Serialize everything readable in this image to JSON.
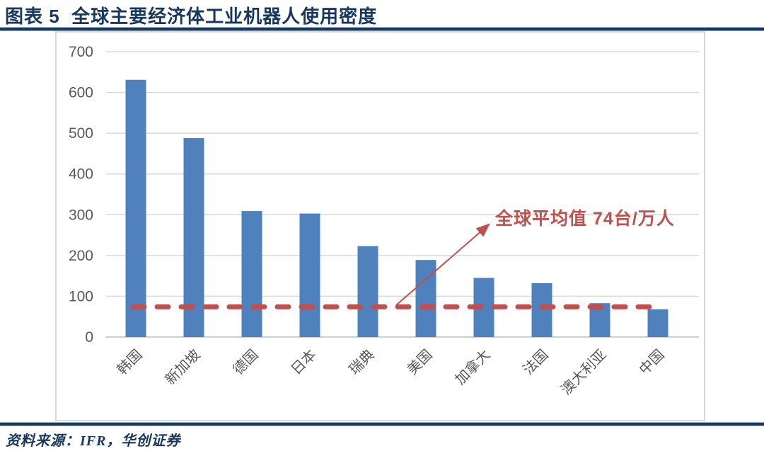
{
  "header": {
    "title": "图表 5  全球主要经济体工业机器人使用密度"
  },
  "footer": {
    "source": "资料来源：IFR，华创证券"
  },
  "colors": {
    "bar": "#4F81BD",
    "average_line": "#C0504D",
    "annotation_text": "#C0504D",
    "title_text": "#17375E",
    "rule_line": "#17375D",
    "gridline": "#D9D9D9",
    "axis_line": "#BFBFBF",
    "axis_text": "#595959",
    "card_border": "#D9D9D9"
  },
  "chart_data": {
    "type": "bar",
    "categories": [
      "韩国",
      "新加坡",
      "德国",
      "日本",
      "瑞典",
      "美国",
      "加拿大",
      "法国",
      "澳大利亚",
      "中国"
    ],
    "values": [
      631,
      488,
      309,
      303,
      223,
      189,
      145,
      132,
      83,
      68
    ],
    "title": "",
    "xlabel": "",
    "ylabel": "",
    "ylim": [
      0,
      700
    ],
    "ytick_step": 100,
    "ytick_labels": [
      "0",
      "100",
      "200",
      "300",
      "400",
      "500",
      "600",
      "700"
    ],
    "grid": true,
    "legend": "none",
    "average_line": {
      "value": 74,
      "style": "dashed",
      "label": "全球平均值 74台/万人"
    }
  }
}
